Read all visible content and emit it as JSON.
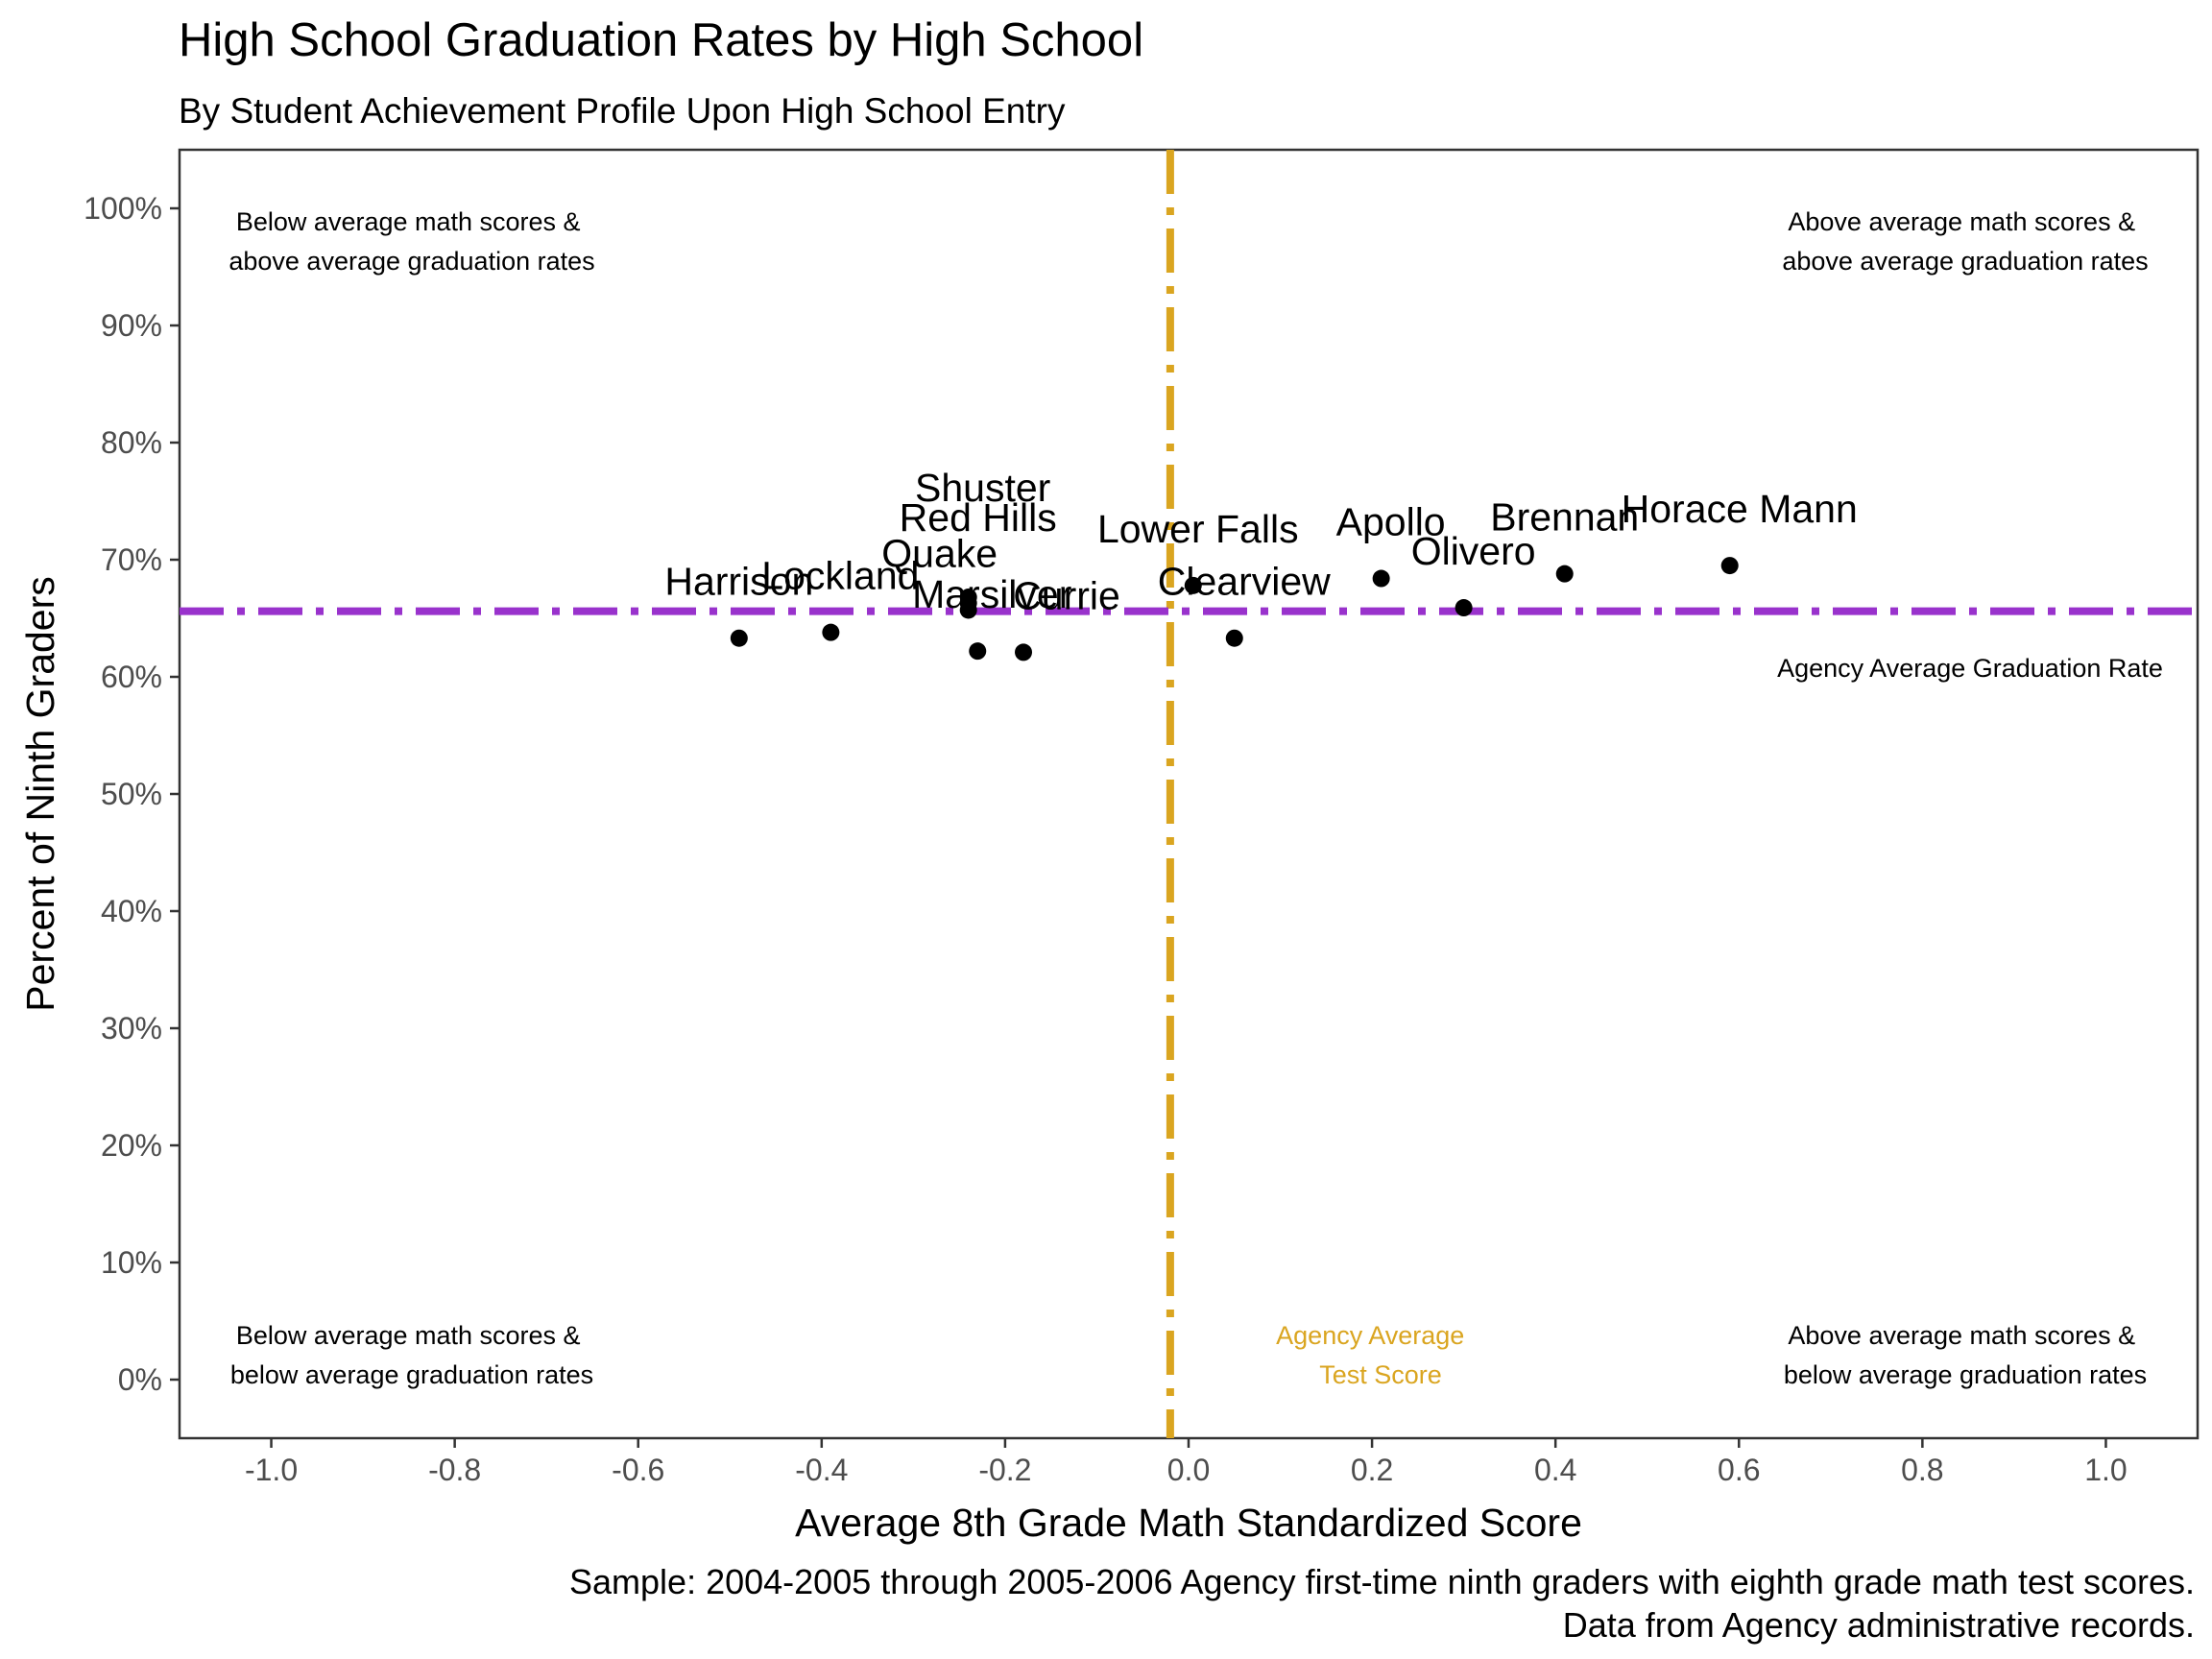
{
  "chart_data": {
    "type": "scatter",
    "title": "High School Graduation Rates by High School",
    "subtitle": "By Student Achievement Profile Upon High School Entry",
    "xlabel": "Average 8th Grade Math Standardized Score",
    "ylabel": "Percent of Ninth Graders",
    "xlim": [
      -1.1,
      1.1
    ],
    "ylim": [
      -5,
      105
    ],
    "x_ticks": [
      -1.0,
      -0.8,
      -0.6,
      -0.4,
      -0.2,
      0.0,
      0.2,
      0.4,
      0.6,
      0.8,
      1.0
    ],
    "x_tick_labels": [
      "-1.0",
      "-0.8",
      "-0.6",
      "-0.4",
      "-0.2",
      "0.0",
      "0.2",
      "0.4",
      "0.6",
      "0.8",
      "1.0"
    ],
    "y_ticks": [
      0,
      10,
      20,
      30,
      40,
      50,
      60,
      70,
      80,
      90,
      100
    ],
    "y_tick_labels": [
      "0%",
      "10%",
      "20%",
      "30%",
      "40%",
      "50%",
      "60%",
      "70%",
      "80%",
      "90%",
      "100%"
    ],
    "grid": false,
    "points": [
      {
        "label": "Harrison",
        "x": -0.49,
        "y": 63.3
      },
      {
        "label": "Lockland",
        "x": -0.39,
        "y": 63.8
      },
      {
        "label": "Shuster",
        "x": -0.24,
        "y": 66.8
      },
      {
        "label": "Red Hills",
        "x": -0.24,
        "y": 66.3
      },
      {
        "label": "Quake",
        "x": -0.24,
        "y": 65.7
      },
      {
        "label": "Marsilver",
        "x": -0.23,
        "y": 62.2
      },
      {
        "label": "Currie",
        "x": -0.18,
        "y": 62.1
      },
      {
        "label": "Lower Falls",
        "x": 0.005,
        "y": 67.8
      },
      {
        "label": "Clearview",
        "x": 0.05,
        "y": 63.3
      },
      {
        "label": "Apollo",
        "x": 0.21,
        "y": 68.4
      },
      {
        "label": "Olivero",
        "x": 0.3,
        "y": 65.9
      },
      {
        "label": "Brennan",
        "x": 0.41,
        "y": 68.8
      },
      {
        "label": "Horace Mann",
        "x": 0.59,
        "y": 69.5
      }
    ],
    "reference_lines": {
      "vertical": {
        "x": -0.02,
        "label_lines": [
          "Agency Average",
          "Test Score"
        ],
        "color": "#DAA520"
      },
      "horizontal": {
        "y": 65.6,
        "label": "Agency Average Graduation Rate",
        "color": "#9932CC"
      }
    },
    "annotations": {
      "top_left": [
        "Below average math scores &",
        "above average graduation rates"
      ],
      "top_right": [
        "Above average math scores &",
        "above average graduation rates"
      ],
      "bottom_left": [
        "Below average math scores &",
        "below average graduation rates"
      ],
      "bottom_right": [
        "Above average math scores &",
        "below average graduation rates"
      ]
    },
    "caption": [
      "Sample: 2004-2005 through 2005-2006 Agency first-time ninth graders with eighth grade math test scores.",
      "Data from Agency administrative records."
    ],
    "colors": {
      "point": "#000000",
      "vline": "#DAA520",
      "hline": "#9932CC",
      "text": "#000000",
      "tick_text": "#4D4D4D"
    }
  }
}
